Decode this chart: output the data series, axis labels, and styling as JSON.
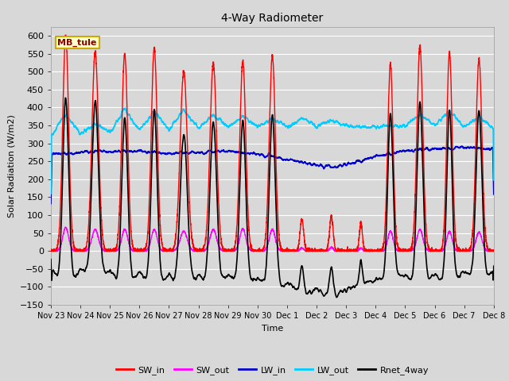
{
  "title": "4-Way Radiometer",
  "ylabel": "Solar Radiation (W/m2)",
  "xlabel": "Time",
  "station_label": "MB_tule",
  "ylim": [
    -150,
    625
  ],
  "yticks": [
    -150,
    -100,
    -50,
    0,
    50,
    100,
    150,
    200,
    250,
    300,
    350,
    400,
    450,
    500,
    550,
    600
  ],
  "colors": {
    "SW_in": "#ff0000",
    "SW_out": "#ff00ff",
    "LW_in": "#0000cc",
    "LW_out": "#00ccff",
    "Rnet_4way": "#000000"
  },
  "linewidths": {
    "SW_in": 1.0,
    "SW_out": 1.0,
    "LW_in": 1.2,
    "LW_out": 1.2,
    "Rnet_4way": 1.2
  },
  "bg_color": "#d8d8d8",
  "xtick_labels": [
    "Nov 23",
    "Nov 24",
    "Nov 25",
    "Nov 26",
    "Nov 27",
    "Nov 28",
    "Nov 29",
    "Nov 30",
    "Dec 1",
    "Dec 2",
    "Dec 3",
    "Dec 4",
    "Dec 5",
    "Dec 6",
    "Dec 7",
    "Dec 8"
  ],
  "legend_entries": [
    "SW_in",
    "SW_out",
    "LW_in",
    "LW_out",
    "Rnet_4way"
  ]
}
